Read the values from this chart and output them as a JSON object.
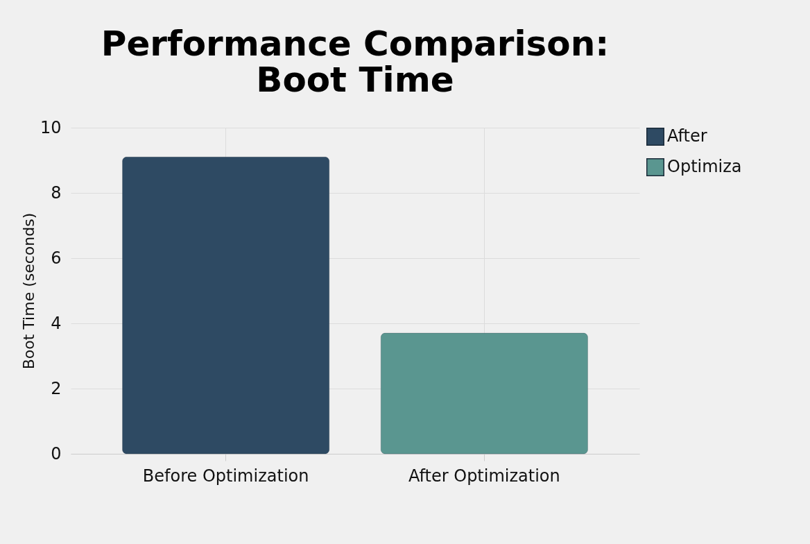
{
  "chart_data": {
    "type": "bar",
    "title": "Performance Comparison:",
    "subtitle": "Boot Time",
    "ylabel": "Boot Time (seconds)",
    "categories": [
      "Before Optimization",
      "After Optimization"
    ],
    "series": [
      {
        "name": "After",
        "color": "#2e4a63",
        "values": [
          9.1,
          null
        ]
      },
      {
        "name": "Optimiza",
        "color": "#5a9690",
        "values": [
          null,
          3.7
        ]
      }
    ],
    "ylim": [
      0,
      10
    ],
    "yticks": [
      0,
      2,
      4,
      6,
      8,
      10
    ],
    "grid": true,
    "legend": "right"
  }
}
